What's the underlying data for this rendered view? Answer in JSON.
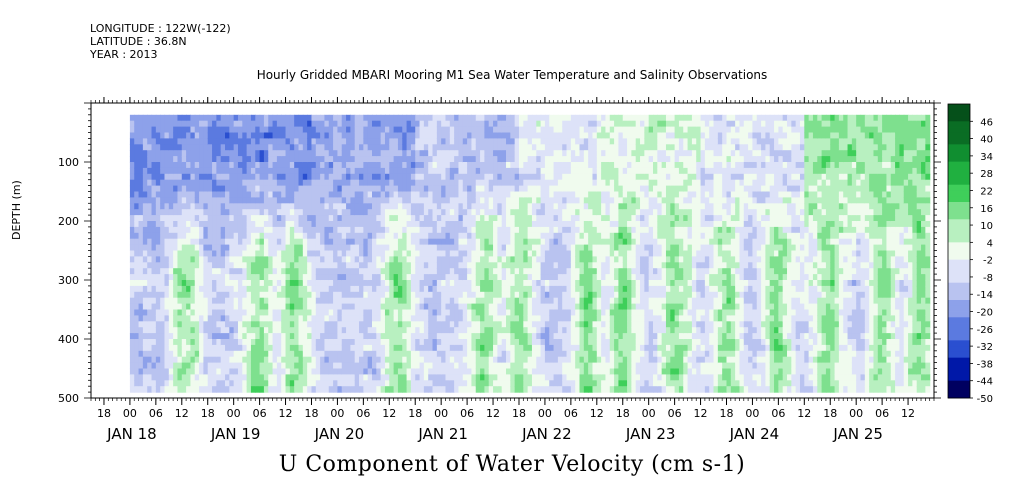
{
  "meta": {
    "longitude": "LONGITUDE : 122W(-122)",
    "latitude": "LATITUDE : 36.8N",
    "year": "YEAR : 2013"
  },
  "chart_data": {
    "type": "heatmap",
    "title": "Hourly Gridded MBARI Mooring M1 Sea Water Temperature and Salinity Observations",
    "xlabel": "U Component of Water Velocity (cm s-1)",
    "ylabel": "DEPTH (m)",
    "y_range": [
      0,
      500
    ],
    "y_reversed": true,
    "y_ticks": [
      100,
      200,
      300,
      400,
      500
    ],
    "x_range": [
      "JAN 17 15:00",
      "JAN 25 18:00"
    ],
    "x_hour_ticks": [
      "18",
      "00",
      "06",
      "12",
      "18",
      "00",
      "06",
      "12",
      "18",
      "00",
      "06",
      "12",
      "18",
      "00",
      "06",
      "12",
      "18",
      "00",
      "06",
      "12",
      "18",
      "00",
      "06",
      "12",
      "18",
      "00",
      "06",
      "12",
      "18",
      "00",
      "06",
      "12"
    ],
    "x_day_labels": [
      "JAN 18",
      "JAN 19",
      "JAN 20",
      "JAN 21",
      "JAN 22",
      "JAN 23",
      "JAN 24",
      "JAN 25"
    ],
    "data_extent": {
      "x_start": "JAN 18 00:00",
      "x_end": "JAN 25 17:00",
      "depth_top": 20,
      "depth_bottom": 490
    },
    "colorbar": {
      "labels": [
        "46",
        "40",
        "34",
        "28",
        "22",
        "16",
        "10",
        "4",
        "-2",
        "-8",
        "-14",
        "-20",
        "-26",
        "-32",
        "-38",
        "-44",
        "-50"
      ],
      "range": [
        -50,
        52
      ],
      "colors_low_to_high": [
        "#000060",
        "#0018a8",
        "#2a4fd0",
        "#5b7ae0",
        "#8da1ea",
        "#b9c3f0",
        "#dde2f8",
        "#f0fbee",
        "#b8f0c0",
        "#7ee08e",
        "#3fcf5a",
        "#20b040",
        "#108e30",
        "#0a6d24",
        "#05501a"
      ]
    },
    "field": {
      "description_note": "U velocity field: negative (blue) near-surface during Jan 18–20; alternating positive (green) and negative (blue) vertical bands at depth.",
      "surface_segments": [
        {
          "from": "JAN 18 00",
          "to": "JAN 19 18",
          "value": -22
        },
        {
          "from": "JAN 19 18",
          "to": "JAN 20 18",
          "value": -18
        },
        {
          "from": "JAN 20 18",
          "to": "JAN 21 18",
          "value": -12
        },
        {
          "from": "JAN 21 18",
          "to": "JAN 22 12",
          "value": -4
        },
        {
          "from": "JAN 22 12",
          "to": "JAN 23 12",
          "value": 2
        },
        {
          "from": "JAN 23 12",
          "to": "JAN 24 12",
          "value": -6
        },
        {
          "from": "JAN 24 12",
          "to": "JAN 25 17",
          "value": 12
        }
      ],
      "deep_bands_green": [
        "JAN 18 13",
        "JAN 19 06",
        "JAN 19 14",
        "JAN 20 14",
        "JAN 21 10",
        "JAN 21 18",
        "JAN 22 10",
        "JAN 22 18",
        "JAN 23 06",
        "JAN 23 18",
        "JAN 24 06",
        "JAN 24 18",
        "JAN 25 06",
        "JAN 25 15"
      ]
    }
  }
}
